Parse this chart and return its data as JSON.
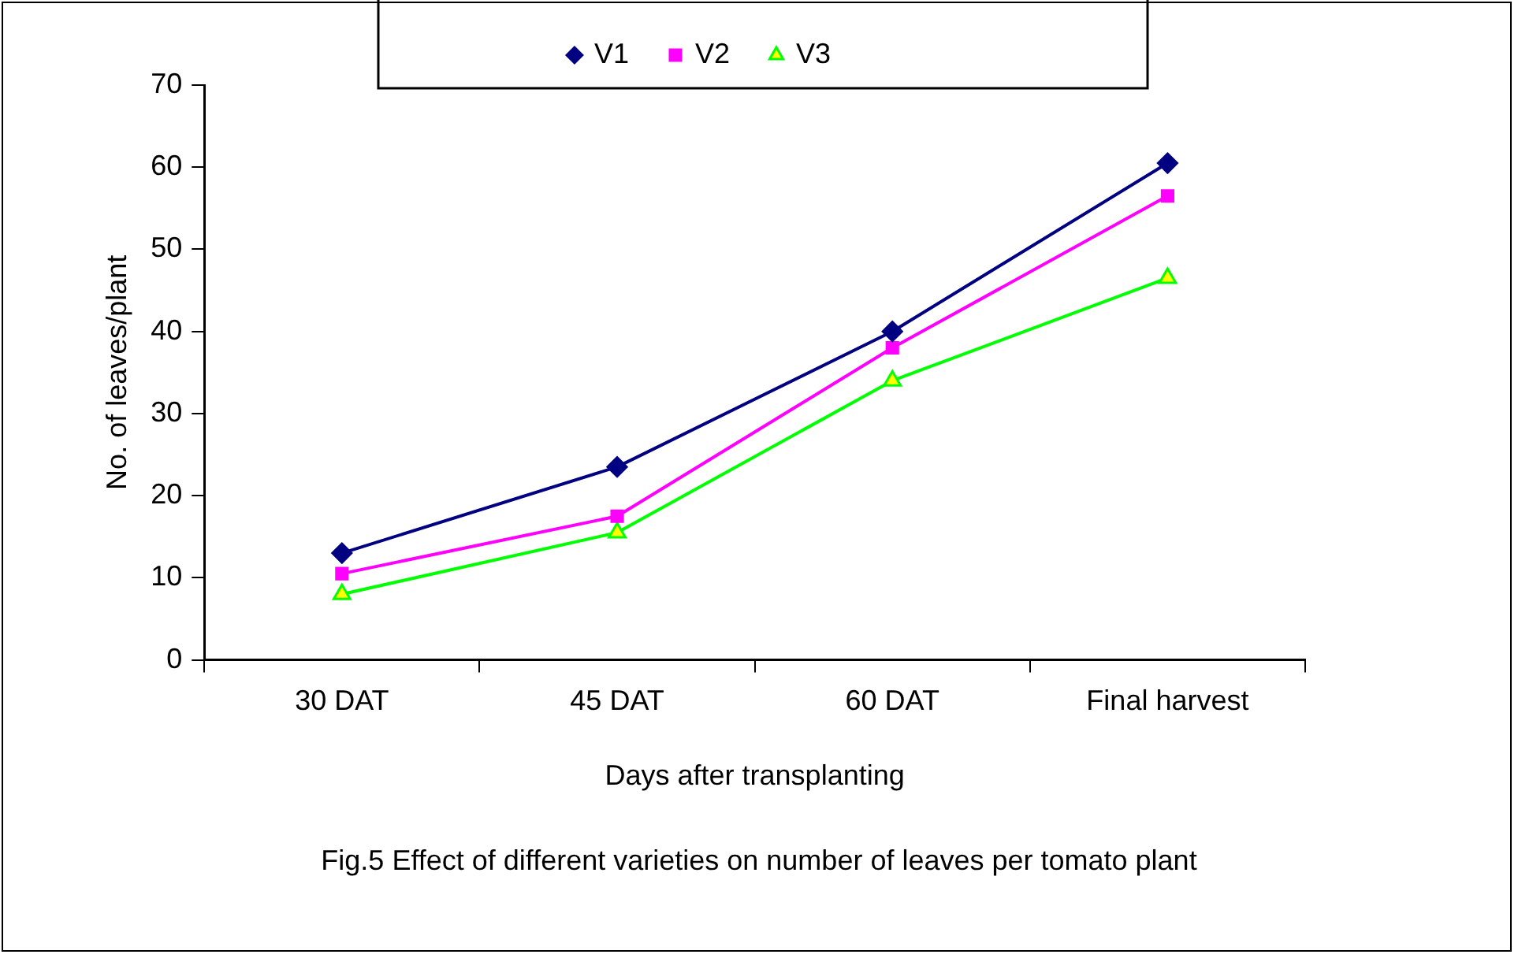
{
  "chart_data": {
    "type": "line",
    "xlabel": "Days after transplanting",
    "ylabel": "No. of leaves/plant",
    "categories": [
      "30 DAT",
      "45 DAT",
      "60 DAT",
      "Final harvest"
    ],
    "series": [
      {
        "name": "V1",
        "color": "#000080",
        "marker": "diamond",
        "values": [
          13,
          23.5,
          40,
          60.5
        ]
      },
      {
        "name": "V2",
        "color": "#ff00ff",
        "marker": "square",
        "values": [
          10.5,
          17.5,
          38,
          56.5
        ]
      },
      {
        "name": "V3",
        "color": "#00ff00",
        "marker": "triangle",
        "values": [
          8,
          15.5,
          34,
          46.5
        ]
      }
    ],
    "ylim": [
      0,
      70
    ],
    "yticks": [
      0,
      10,
      20,
      30,
      40,
      50,
      60,
      70
    ],
    "grid": false,
    "legend": "top",
    "annotations": [
      "Fig.5 Effect of different varieties on number of leaves per tomato plant"
    ]
  }
}
